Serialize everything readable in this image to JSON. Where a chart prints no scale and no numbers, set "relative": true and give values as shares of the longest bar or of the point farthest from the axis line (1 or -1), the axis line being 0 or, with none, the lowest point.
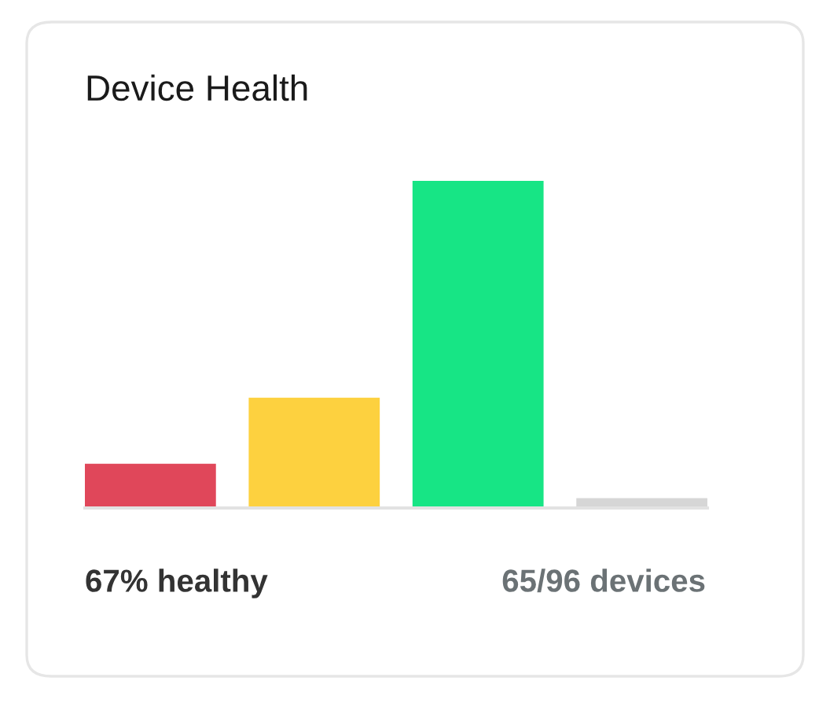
{
  "chart_data": {
    "type": "bar",
    "title": "Device Health",
    "relative": true,
    "categories": [
      null,
      null,
      null,
      null
    ],
    "values": [
      0.135,
      0.337,
      1,
      0.03
    ],
    "colors": [
      "#e0475a",
      "#fdd13f",
      "#17e585",
      "#d6d6d6"
    ],
    "annotations": [
      "67% healthy",
      "65/96 devices"
    ],
    "grid": false,
    "legend": false
  }
}
